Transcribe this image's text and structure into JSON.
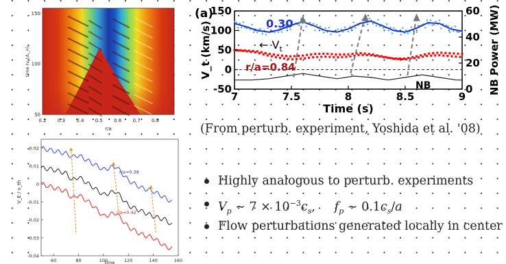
{
  "heatmap": {
    "ylabel": "time (v_t/L_n)",
    "xlabel": "r/a",
    "xticks": [
      "0.2",
      "0.3",
      "0.4",
      "0.5",
      "0.6",
      "0.7",
      "0.8"
    ],
    "yticks": [
      "150",
      "100",
      "50"
    ]
  },
  "exp_plot": {
    "panel_label": "(a)",
    "ylabel_left": "V_t (km/s)",
    "ylabel_right": "NB Power (MW)",
    "xlabel": "Time (s)",
    "xticks": [
      "7",
      "7.5",
      "8",
      "8.5",
      "9"
    ],
    "yticks_left": [
      "150",
      "100",
      "50",
      "0",
      "-50"
    ],
    "yticks_right": [
      "60",
      "40",
      "20",
      "0"
    ],
    "label_030": "0.30",
    "label_vt": "← V",
    "label_vt_sub": "t",
    "label_084": "r/a=0.84",
    "label_nb": "NB",
    "colors": {
      "blue": "#2233cc",
      "light_blue": "#33aaee",
      "red": "#ee1111"
    }
  },
  "sim_plot": {
    "ylabel": "V_E / v_th",
    "xlabel": "time",
    "xticks": [
      "60",
      "80",
      "100",
      "120",
      "140",
      "160"
    ],
    "yticks": [
      "0.02",
      "0.01",
      "0",
      "-0.01",
      "-0.02",
      "-0.03",
      "-0.04"
    ],
    "label_top": "r/a=0.38",
    "label_bottom": "r/a=0.42"
  },
  "caption": "(From perturb. experiment, Yoshida et al. '08)",
  "bullets": {
    "b1": "Highly analogous to perturb. experiments",
    "b2_vp": "V",
    "b2_vp_sub": "p",
    "b2_mid": " ∼ 7 × 10",
    "b2_exp": "−3",
    "b2_cs": "c",
    "b2_cs_sub": "s",
    "b2_comma": ",",
    "b2_fp": "f",
    "b2_fp_sub": "p",
    "b2_end": " ∼ 0.1",
    "b2_cs2": "c",
    "b2_cs2_sub": "s",
    "b2_over": "/",
    "b2_a": "a",
    "b3": "Flow perturbations generated locally in center"
  },
  "chart_data": [
    {
      "type": "heatmap",
      "xlabel": "r/a",
      "ylabel": "time (v_t/L_n)",
      "xlim": [
        0.2,
        0.9
      ],
      "ylim": [
        50,
        155
      ],
      "xticks": [
        0.2,
        0.3,
        0.4,
        0.5,
        0.6,
        0.7,
        0.8
      ],
      "yticks": [
        50,
        100,
        150
      ]
    },
    {
      "type": "line",
      "xlabel": "Time (s)",
      "ylabel": "V_t (km/s)",
      "ylabel_right": "NB Power (MW)",
      "xlim": [
        7,
        9
      ],
      "ylim": [
        -50,
        150
      ],
      "ylim_right": [
        0,
        60
      ],
      "series": [
        {
          "name": "0.30",
          "x": [
            7.0,
            7.1,
            7.2,
            7.3,
            7.4,
            7.5,
            7.6,
            7.7,
            7.8,
            7.9,
            8.0,
            8.1,
            8.2,
            8.3,
            8.4,
            8.5,
            8.6,
            8.7,
            8.8,
            8.9,
            9.0
          ],
          "values": [
            118,
            110,
            100,
            96,
            102,
            114,
            122,
            112,
            100,
            96,
            104,
            118,
            124,
            112,
            100,
            96,
            106,
            120,
            118,
            104,
            98
          ]
        },
        {
          "name": "r/a=0.84",
          "x": [
            7.0,
            7.1,
            7.2,
            7.3,
            7.4,
            7.5,
            7.6,
            7.7,
            7.8,
            7.9,
            8.0,
            8.1,
            8.2,
            8.3,
            8.4,
            8.5,
            8.6,
            8.7,
            8.8,
            8.9,
            9.0
          ],
          "values": [
            50,
            48,
            45,
            38,
            33,
            30,
            32,
            36,
            37,
            35,
            36,
            40,
            38,
            33,
            28,
            27,
            32,
            38,
            40,
            38,
            36
          ]
        },
        {
          "name": "NB",
          "x": [
            7.0,
            7.15,
            7.3,
            7.45,
            7.6,
            7.75,
            7.9,
            8.05,
            8.2,
            8.35,
            8.5,
            8.65,
            8.8,
            8.95,
            9.0
          ],
          "values": [
            7,
            7,
            8,
            10,
            12,
            10,
            8,
            10,
            9,
            7,
            9,
            11,
            9,
            7,
            7
          ]
        }
      ]
    },
    {
      "type": "line",
      "xlabel": "time",
      "ylabel": "V_E / v_th",
      "xlim": [
        50,
        160
      ],
      "ylim": [
        -0.04,
        0.025
      ],
      "series": [
        {
          "name": "r/a=0.38",
          "x": [
            50,
            60,
            70,
            75,
            80,
            90,
            100,
            110,
            120,
            130,
            140,
            150,
            155
          ],
          "values": [
            0.02,
            0.0185,
            0.017,
            0.015,
            0.016,
            0.012,
            0.008,
            0.01,
            0.002,
            -0.002,
            -0.004,
            -0.008,
            -0.01
          ]
        },
        {
          "x": [
            50,
            60,
            70,
            75,
            80,
            90,
            100,
            110,
            120,
            130,
            140,
            150,
            155
          ],
          "values": [
            0.009,
            0.008,
            0.006,
            0.002,
            0.004,
            -0.001,
            -0.006,
            -0.004,
            -0.012,
            -0.015,
            -0.018,
            -0.02,
            -0.023
          ]
        },
        {
          "name": "r/a=0.42",
          "x": [
            50,
            60,
            70,
            75,
            80,
            90,
            100,
            110,
            120,
            130,
            140,
            150,
            155
          ],
          "values": [
            0.0,
            -0.002,
            -0.004,
            -0.008,
            -0.006,
            -0.011,
            -0.018,
            -0.016,
            -0.024,
            -0.028,
            -0.03,
            -0.035,
            -0.036
          ]
        }
      ]
    }
  ]
}
